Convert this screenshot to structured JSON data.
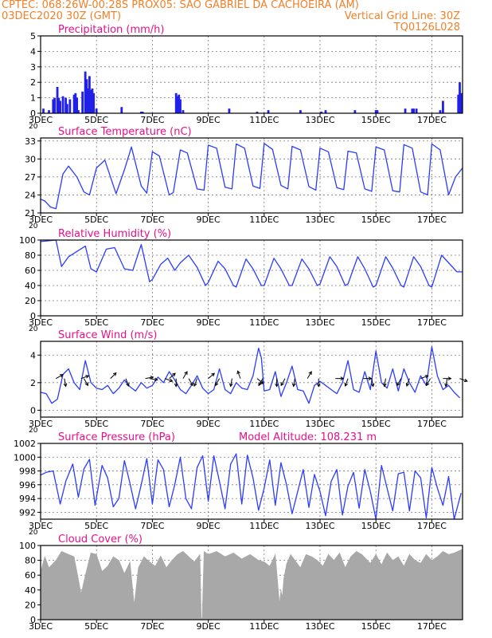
{
  "header": {
    "line1_left": "CPTEC:  068:26W-00:28S  PROX05: SAO GABRIEL DA CACHOEIRA (AM)",
    "line2_left": "03DEC2020 30Z (GMT)",
    "line2_right": "Vertical Grid Line: 30Z",
    "line3_right": "TQ0126L028"
  },
  "colors": {
    "header_text": "#f0802a",
    "panel_title": "#e8108a",
    "precip_bar": "#2020e8",
    "series_line": "#2a3cff",
    "cloud_fill": "#a8a8a8",
    "wind_arrow": "#000000",
    "grid": "#7a7a7a"
  },
  "x_axis": {
    "start": "03DEC",
    "ticks": [
      "3DEC",
      "5DEC",
      "7DEC",
      "9DEC",
      "11DEC",
      "13DEC",
      "15DEC",
      "17DEC"
    ],
    "tick_days": [
      3,
      5,
      7,
      9,
      11,
      13,
      15,
      17
    ],
    "range_days": [
      3,
      18.1
    ],
    "partial_label": "20"
  },
  "panels": [
    {
      "key": "precip",
      "title": "Precipitation (mm/h)",
      "type": "bar",
      "ylim": [
        0,
        5
      ],
      "yticks": [
        "0",
        "1",
        "2",
        "3",
        "4",
        "5"
      ],
      "ytick_values": [
        0,
        1,
        2,
        3,
        4,
        5
      ]
    },
    {
      "key": "temp",
      "title": "Surface Temperature (nC)",
      "type": "line",
      "ylim": [
        21,
        33.5
      ],
      "yticks": [
        "21",
        "24",
        "27",
        "30",
        "33"
      ],
      "ytick_values": [
        21,
        24,
        27,
        30,
        33
      ]
    },
    {
      "key": "rh",
      "title": "Relative Humidity (%)",
      "type": "line",
      "ylim": [
        0,
        100
      ],
      "yticks": [
        "0",
        "20",
        "40",
        "60",
        "80",
        "100"
      ],
      "ytick_values": [
        0,
        20,
        40,
        60,
        80,
        100
      ]
    },
    {
      "key": "wind",
      "title": "Surface Wind (m/s)",
      "type": "line",
      "ylim": [
        -0.5,
        5
      ],
      "yticks": [
        "0",
        "2",
        "4"
      ],
      "ytick_values": [
        0,
        2,
        4
      ]
    },
    {
      "key": "pres",
      "title": "Surface Pressure (hPa)",
      "extra_title": "Model Altitude: 108.231 m",
      "type": "line",
      "ylim": [
        991,
        1002
      ],
      "yticks": [
        "992",
        "994",
        "996",
        "998",
        "1000",
        "1002"
      ],
      "ytick_values": [
        992,
        994,
        996,
        998,
        1000,
        1002
      ]
    },
    {
      "key": "cloud",
      "title": "Cloud Cover (%)",
      "type": "area",
      "ylim": [
        0,
        100
      ],
      "yticks": [
        "0",
        "20",
        "40",
        "60",
        "80",
        "100"
      ],
      "ytick_values": [
        0,
        20,
        40,
        60,
        80,
        100
      ]
    }
  ],
  "chart_data": {
    "type": "line",
    "x_unit": "day of December 2020",
    "precip": {
      "type": "bar",
      "x": [
        3.1,
        3.3,
        3.45,
        3.5,
        3.6,
        3.65,
        3.7,
        3.8,
        3.9,
        3.95,
        4.05,
        4.2,
        4.25,
        4.3,
        4.35,
        4.5,
        4.6,
        4.65,
        4.7,
        4.75,
        4.8,
        4.85,
        4.9,
        5.0,
        5.9,
        6.6,
        6.65,
        7.85,
        7.9,
        7.95,
        8.0,
        8.1,
        9.75,
        10.75,
        11.15,
        12.3,
        13.05,
        13.2,
        14.25,
        15.0,
        15.05,
        16.05,
        16.3,
        16.35,
        16.45,
        17.3,
        17.4,
        17.95,
        18.0,
        18.05
      ],
      "values": [
        0.3,
        0.2,
        0.9,
        1.0,
        1.7,
        1.0,
        0.8,
        1.1,
        1.0,
        0.6,
        0.9,
        1.2,
        1.3,
        1.0,
        0.2,
        1.4,
        2.7,
        2.2,
        1.6,
        2.4,
        1.5,
        1.6,
        1.3,
        0.3,
        0.4,
        0.1,
        0.1,
        1.3,
        1.1,
        1.2,
        0.9,
        0.2,
        0.3,
        0.1,
        0.2,
        0.2,
        0.1,
        0.2,
        0.2,
        0.2,
        0.2,
        0.3,
        0.3,
        0.3,
        0.3,
        0.2,
        0.8,
        1.2,
        2.0,
        1.3
      ]
    },
    "temp": {
      "x": [
        3.0,
        3.15,
        3.35,
        3.55,
        3.8,
        4.0,
        4.3,
        4.55,
        4.75,
        5.0,
        5.3,
        5.7,
        6.0,
        6.25,
        6.6,
        6.8,
        7.0,
        7.25,
        7.6,
        7.75,
        8.0,
        8.25,
        8.6,
        8.85,
        9.0,
        9.3,
        9.6,
        9.85,
        10.0,
        10.3,
        10.6,
        10.85,
        11.0,
        11.3,
        11.6,
        11.85,
        12.0,
        12.3,
        12.6,
        12.85,
        13.0,
        13.3,
        13.6,
        13.85,
        14.0,
        14.3,
        14.6,
        14.85,
        15.0,
        15.3,
        15.6,
        15.85,
        16.0,
        16.3,
        16.6,
        16.85,
        17.0,
        17.3,
        17.6,
        17.85,
        18.1
      ],
      "values": [
        23.3,
        23.0,
        22.0,
        21.7,
        27.5,
        28.8,
        27.0,
        24.5,
        24.0,
        28.5,
        29.8,
        24.2,
        28.2,
        32.0,
        25.5,
        24.3,
        31.2,
        30.5,
        24.0,
        24.4,
        31.5,
        31.0,
        25.0,
        24.8,
        32.3,
        31.8,
        25.3,
        25.0,
        32.5,
        31.8,
        25.5,
        25.1,
        32.6,
        31.6,
        25.6,
        25.0,
        32.1,
        31.5,
        25.4,
        24.8,
        31.8,
        31.2,
        25.2,
        24.9,
        31.3,
        31.0,
        25.0,
        24.6,
        32.0,
        31.5,
        24.7,
        24.5,
        32.4,
        31.8,
        24.5,
        24.0,
        32.5,
        31.5,
        24.0,
        27.0,
        28.5
      ]
    },
    "rh": {
      "x": [
        3.0,
        3.3,
        3.55,
        3.75,
        4.0,
        4.3,
        4.6,
        4.8,
        5.0,
        5.35,
        5.65,
        6.0,
        6.3,
        6.6,
        6.9,
        7.0,
        7.3,
        7.55,
        7.8,
        8.0,
        8.3,
        8.6,
        8.9,
        9.0,
        9.35,
        9.6,
        9.9,
        10.0,
        10.35,
        10.6,
        10.9,
        11.0,
        11.35,
        11.6,
        11.9,
        12.0,
        12.35,
        12.6,
        12.9,
        13.0,
        13.35,
        13.6,
        13.9,
        14.0,
        14.35,
        14.6,
        14.9,
        15.0,
        15.35,
        15.6,
        15.9,
        16.0,
        16.35,
        16.6,
        16.9,
        17.0,
        17.35,
        17.6,
        17.9,
        18.1
      ],
      "values": [
        98,
        99,
        100,
        65,
        78,
        85,
        92,
        62,
        58,
        88,
        90,
        62,
        60,
        94,
        45,
        48,
        68,
        76,
        60,
        70,
        80,
        64,
        40,
        44,
        72,
        62,
        40,
        38,
        75,
        62,
        40,
        40,
        76,
        62,
        40,
        40,
        75,
        62,
        40,
        42,
        78,
        65,
        40,
        42,
        78,
        62,
        38,
        40,
        78,
        63,
        40,
        38,
        78,
        65,
        40,
        38,
        80,
        70,
        58,
        58
      ]
    },
    "wind": {
      "x": [
        3.0,
        3.2,
        3.4,
        3.6,
        3.8,
        4.0,
        4.2,
        4.4,
        4.6,
        4.8,
        5.0,
        5.2,
        5.4,
        5.6,
        5.8,
        6.0,
        6.2,
        6.4,
        6.6,
        6.8,
        7.0,
        7.2,
        7.4,
        7.6,
        7.8,
        8.0,
        8.2,
        8.4,
        8.6,
        8.8,
        9.0,
        9.2,
        9.4,
        9.6,
        9.8,
        10.0,
        10.2,
        10.4,
        10.6,
        10.8,
        10.9,
        11.0,
        11.2,
        11.4,
        11.6,
        11.8,
        12.0,
        12.2,
        12.4,
        12.6,
        12.8,
        13.0,
        13.2,
        13.4,
        13.6,
        13.8,
        14.0,
        14.2,
        14.4,
        14.6,
        14.8,
        15.0,
        15.2,
        15.4,
        15.6,
        15.8,
        16.0,
        16.2,
        16.4,
        16.6,
        16.8,
        17.0,
        17.2,
        17.4,
        17.6,
        17.8,
        18.0
      ],
      "values": [
        1.3,
        1.2,
        0.5,
        0.8,
        2.6,
        3.0,
        2.0,
        1.5,
        3.6,
        2.0,
        1.6,
        1.5,
        1.8,
        1.2,
        1.6,
        2.2,
        1.7,
        1.4,
        2.0,
        1.6,
        1.8,
        2.4,
        2.0,
        2.8,
        2.2,
        1.5,
        1.2,
        1.8,
        2.5,
        1.6,
        1.2,
        1.5,
        3.0,
        1.5,
        1.2,
        2.0,
        1.6,
        1.5,
        2.5,
        4.5,
        3.8,
        1.4,
        1.5,
        2.8,
        1.0,
        2.0,
        3.2,
        1.5,
        1.4,
        0.5,
        1.8,
        2.1,
        1.8,
        1.5,
        1.2,
        2.0,
        3.6,
        1.5,
        1.3,
        2.8,
        1.5,
        4.3,
        2.0,
        1.6,
        3.0,
        1.4,
        3.0,
        2.0,
        1.3,
        2.5,
        1.8,
        4.6,
        2.5,
        1.5,
        1.8,
        1.3,
        0.9
      ]
    },
    "wind_arrows": {
      "x": [
        3.55,
        3.85,
        4.45,
        4.55,
        5.5,
        6.05,
        6.75,
        6.9,
        7.45,
        7.6,
        7.85,
        8.1,
        8.3,
        8.6,
        9.0,
        9.4,
        9.85,
        10.15,
        10.75,
        10.95,
        11.45,
        11.75,
        12.1,
        12.55,
        12.95,
        13.55,
        14.0,
        14.55,
        14.85,
        15.35,
        15.9,
        16.2,
        16.6,
        16.95,
        17.4,
        17.55,
        18.0
      ],
      "direction_deg": [
        30,
        -80,
        20,
        -60,
        45,
        -70,
        10,
        -10,
        -20,
        40,
        -90,
        60,
        -60,
        -110,
        40,
        -120,
        -100,
        110,
        -40,
        -120,
        -90,
        -120,
        -100,
        60,
        -90,
        0,
        -110,
        0,
        -80,
        -100,
        -120,
        -110,
        20,
        -120,
        0,
        -100,
        -20
      ]
    },
    "pres": {
      "x": [
        3.0,
        3.2,
        3.45,
        3.7,
        3.9,
        4.15,
        4.35,
        4.55,
        4.75,
        4.95,
        5.2,
        5.4,
        5.6,
        5.8,
        6.0,
        6.2,
        6.4,
        6.6,
        6.8,
        7.0,
        7.2,
        7.4,
        7.6,
        7.8,
        8.0,
        8.2,
        8.4,
        8.6,
        8.8,
        9.0,
        9.2,
        9.4,
        9.6,
        9.8,
        10.0,
        10.2,
        10.4,
        10.6,
        10.8,
        11.0,
        11.2,
        11.4,
        11.6,
        11.8,
        12.0,
        12.2,
        12.4,
        12.6,
        12.8,
        13.0,
        13.2,
        13.4,
        13.6,
        13.8,
        14.0,
        14.2,
        14.4,
        14.6,
        14.8,
        15.0,
        15.2,
        15.4,
        15.6,
        15.8,
        16.0,
        16.2,
        16.4,
        16.6,
        16.8,
        17.0,
        17.2,
        17.4,
        17.6,
        17.8,
        18.05
      ],
      "values": [
        997.4,
        997.8,
        998.0,
        993.2,
        996.5,
        999.0,
        994.2,
        998.3,
        999.7,
        993.0,
        998.8,
        997.0,
        992.8,
        994.0,
        999.5,
        996.2,
        992.5,
        996.0,
        999.8,
        993.2,
        999.6,
        998.2,
        992.8,
        996.0,
        1000.0,
        994.0,
        992.5,
        998.5,
        1000.2,
        993.6,
        1000.2,
        996.5,
        992.5,
        999.0,
        1000.5,
        993.2,
        1000.3,
        997.0,
        992.3,
        995.5,
        999.6,
        993.0,
        999.2,
        996.0,
        991.8,
        995.0,
        998.2,
        992.7,
        997.5,
        995.0,
        991.5,
        996.5,
        998.2,
        991.6,
        995.8,
        997.8,
        992.6,
        998.2,
        995.0,
        991.0,
        998.8,
        995.5,
        992.2,
        997.6,
        997.8,
        992.2,
        998.0,
        997.0,
        991.2,
        998.5,
        995.5,
        993.0,
        997.2,
        991.0,
        994.8
      ]
    },
    "cloud": {
      "x": [
        3.0,
        3.15,
        3.3,
        3.55,
        3.75,
        4.0,
        4.2,
        4.45,
        4.6,
        4.8,
        5.0,
        5.2,
        5.4,
        5.6,
        5.8,
        6.0,
        6.2,
        6.35,
        6.5,
        6.7,
        6.9,
        7.1,
        7.3,
        7.5,
        7.7,
        7.9,
        8.1,
        8.3,
        8.5,
        8.7,
        8.75,
        8.78,
        8.85,
        9.0,
        9.3,
        9.6,
        9.9,
        10.2,
        10.5,
        10.8,
        11.0,
        11.2,
        11.4,
        11.55,
        11.6,
        11.65,
        11.7,
        11.8,
        11.95,
        12.1,
        12.3,
        12.5,
        12.7,
        12.9,
        13.1,
        13.3,
        13.5,
        13.7,
        13.9,
        14.1,
        14.3,
        14.5,
        14.8,
        15.0,
        15.2,
        15.4,
        15.6,
        15.8,
        16.0,
        16.2,
        16.4,
        16.6,
        16.8,
        17.0,
        17.2,
        17.4,
        17.6,
        17.8,
        18.1
      ],
      "values": [
        65,
        85,
        70,
        80,
        92,
        88,
        85,
        35,
        60,
        90,
        88,
        65,
        72,
        85,
        80,
        62,
        78,
        20,
        70,
        85,
        78,
        72,
        86,
        70,
        80,
        88,
        92,
        85,
        78,
        88,
        2,
        2,
        92,
        88,
        92,
        85,
        90,
        82,
        88,
        80,
        78,
        72,
        88,
        22,
        40,
        30,
        55,
        75,
        88,
        80,
        70,
        88,
        85,
        80,
        72,
        88,
        80,
        90,
        70,
        85,
        92,
        88,
        76,
        88,
        74,
        90,
        80,
        85,
        72,
        88,
        80,
        76,
        88,
        80,
        85,
        92,
        88,
        90,
        95
      ]
    }
  }
}
